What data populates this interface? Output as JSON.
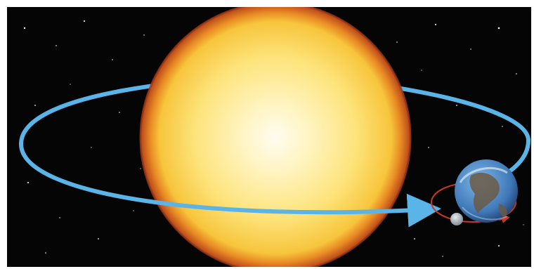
{
  "scene": {
    "description_free": true,
    "colors": {
      "space": "#050505",
      "sun_core": "#fffbe6",
      "sun_mid": "#fde98a",
      "sun_edge": "#f3b33a",
      "sun_rim": "#c9531d",
      "orbit": "#5ab4e8",
      "moon_orbit": "#c9362a",
      "earth_ocean": "#4a86c5",
      "earth_land": "#6b5a45",
      "moon": "#b9c2c8"
    },
    "icons": [
      "sun-icon",
      "earth-icon",
      "moon-icon",
      "orbit-arrow-icon"
    ]
  }
}
